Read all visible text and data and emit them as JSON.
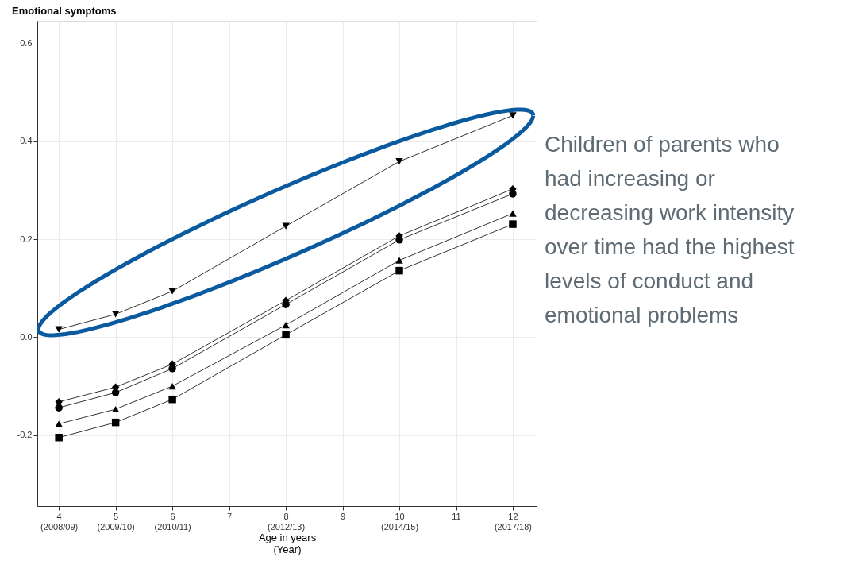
{
  "chart_data": {
    "type": "line",
    "title": "Emotional symptoms",
    "xlabel": "Age in years\n(Year)",
    "x": [
      4,
      5,
      6,
      8,
      10,
      12
    ],
    "series": [
      {
        "color": "#000000",
        "marker": "triangle-down",
        "values": [
          0.016,
          0.047,
          0.094,
          0.227,
          0.359,
          0.453
        ]
      },
      {
        "color": "#000000",
        "marker": "diamond",
        "values": [
          -0.132,
          -0.102,
          -0.055,
          0.075,
          0.207,
          0.303
        ]
      },
      {
        "color": "#000000",
        "marker": "circle",
        "values": [
          -0.144,
          -0.113,
          -0.064,
          0.067,
          0.199,
          0.293
        ]
      },
      {
        "color": "#000000",
        "marker": "triangle",
        "values": [
          -0.177,
          -0.147,
          -0.1,
          0.025,
          0.157,
          0.253
        ]
      },
      {
        "color": "#000000",
        "marker": "square",
        "values": [
          -0.205,
          -0.174,
          -0.127,
          0.005,
          0.136,
          0.231
        ]
      }
    ],
    "xlim": [
      3.62,
      12.42
    ],
    "xticks": [
      {
        "value": 4,
        "label": "4\n(2008/09)"
      },
      {
        "value": 5,
        "label": "5\n(2009/10)"
      },
      {
        "value": 6,
        "label": "6\n(2010/11)"
      },
      7,
      {
        "value": 8,
        "label": "8\n(2012/13)"
      },
      9,
      {
        "value": 10,
        "label": "10\n(2014/15)"
      },
      11,
      {
        "value": 12,
        "label": "12\n(2017/18)"
      }
    ],
    "ylim": [
      -0.345,
      0.645
    ],
    "yticks": [
      -0.2,
      {
        "value": 0,
        "label": "0.0"
      },
      0.2,
      0.4,
      0.6
    ],
    "grid": true,
    "line_style": "solid",
    "annotations": [
      "Children of parents who had increasing or decreasing work intensity over time had the highest levels of conduct and emotional problems"
    ]
  }
}
